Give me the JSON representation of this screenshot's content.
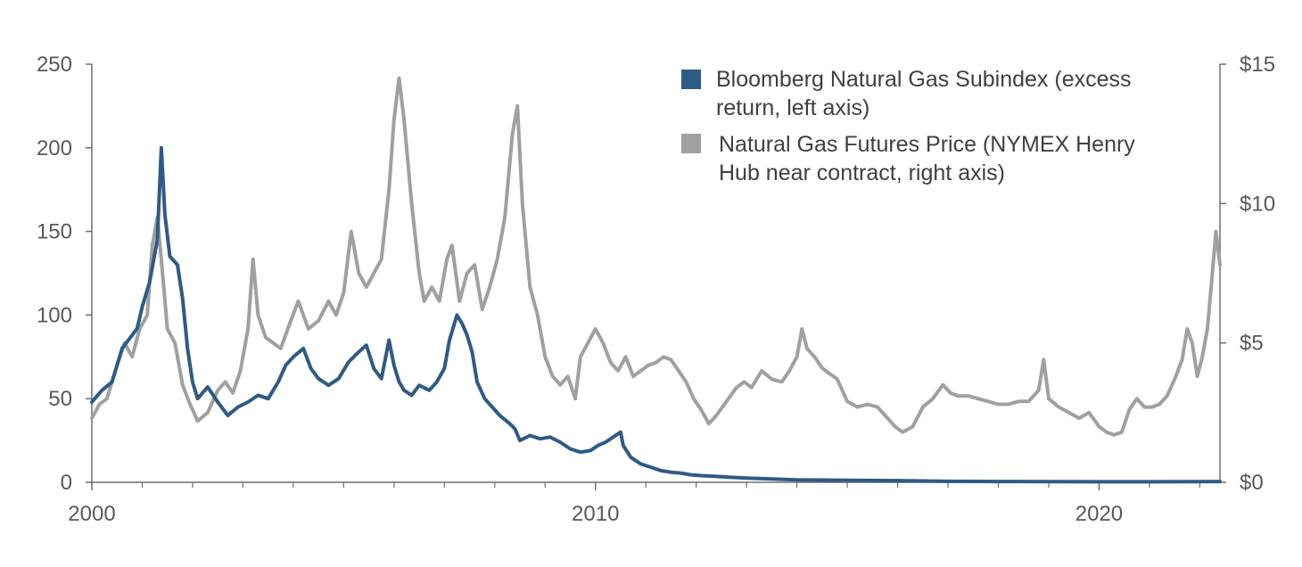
{
  "chart_data": {
    "type": "line",
    "title": "",
    "xlabel": "",
    "ylabel_left": "",
    "ylabel_right": "",
    "x_range": [
      2000,
      2022.4
    ],
    "x_ticks": [
      {
        "value": 2000,
        "label": "2000"
      },
      {
        "value": 2010,
        "label": "2010"
      },
      {
        "value": 2020,
        "label": "2020"
      }
    ],
    "y_left_range": [
      0,
      250
    ],
    "y_left_ticks": [
      {
        "value": 0,
        "label": "0"
      },
      {
        "value": 50,
        "label": "50"
      },
      {
        "value": 100,
        "label": "100"
      },
      {
        "value": 150,
        "label": "150"
      },
      {
        "value": 200,
        "label": "200"
      },
      {
        "value": 250,
        "label": "250"
      }
    ],
    "y_right_range": [
      0,
      15
    ],
    "y_right_ticks": [
      {
        "value": 0,
        "label": "$0"
      },
      {
        "value": 5,
        "label": "$5"
      },
      {
        "value": 10,
        "label": "$10"
      },
      {
        "value": 15,
        "label": "$15"
      }
    ],
    "grid": false,
    "legend_position": "top-right",
    "series": [
      {
        "name_lines": [
          "Bloomberg Natural Gas Subindex (excess",
          "return,  left axis)"
        ],
        "axis": "left",
        "color": "#2E5A87",
        "points": [
          [
            2000.0,
            48
          ],
          [
            2000.2,
            55
          ],
          [
            2000.4,
            60
          ],
          [
            2000.6,
            80
          ],
          [
            2000.8,
            88
          ],
          [
            2000.9,
            92
          ],
          [
            2001.0,
            105
          ],
          [
            2001.15,
            120
          ],
          [
            2001.3,
            145
          ],
          [
            2001.38,
            200
          ],
          [
            2001.45,
            160
          ],
          [
            2001.55,
            135
          ],
          [
            2001.7,
            130
          ],
          [
            2001.8,
            110
          ],
          [
            2001.9,
            80
          ],
          [
            2002.0,
            60
          ],
          [
            2002.1,
            50
          ],
          [
            2002.3,
            57
          ],
          [
            2002.5,
            48
          ],
          [
            2002.7,
            40
          ],
          [
            2002.9,
            45
          ],
          [
            2003.1,
            48
          ],
          [
            2003.3,
            52
          ],
          [
            2003.5,
            50
          ],
          [
            2003.7,
            60
          ],
          [
            2003.85,
            70
          ],
          [
            2004.0,
            75
          ],
          [
            2004.2,
            80
          ],
          [
            2004.35,
            68
          ],
          [
            2004.5,
            62
          ],
          [
            2004.7,
            58
          ],
          [
            2004.9,
            62
          ],
          [
            2005.1,
            72
          ],
          [
            2005.3,
            78
          ],
          [
            2005.45,
            82
          ],
          [
            2005.6,
            68
          ],
          [
            2005.75,
            62
          ],
          [
            2005.9,
            85
          ],
          [
            2006.0,
            70
          ],
          [
            2006.1,
            60
          ],
          [
            2006.2,
            55
          ],
          [
            2006.35,
            52
          ],
          [
            2006.5,
            58
          ],
          [
            2006.7,
            55
          ],
          [
            2006.85,
            60
          ],
          [
            2007.0,
            68
          ],
          [
            2007.1,
            85
          ],
          [
            2007.25,
            100
          ],
          [
            2007.35,
            95
          ],
          [
            2007.45,
            88
          ],
          [
            2007.55,
            78
          ],
          [
            2007.65,
            60
          ],
          [
            2007.8,
            50
          ],
          [
            2007.95,
            45
          ],
          [
            2008.1,
            40
          ],
          [
            2008.3,
            35
          ],
          [
            2008.4,
            32
          ],
          [
            2008.5,
            25
          ],
          [
            2008.7,
            28
          ],
          [
            2008.9,
            26
          ],
          [
            2009.1,
            27
          ],
          [
            2009.3,
            24
          ],
          [
            2009.5,
            20
          ],
          [
            2009.7,
            18
          ],
          [
            2009.9,
            19
          ],
          [
            2010.05,
            22
          ],
          [
            2010.2,
            24
          ],
          [
            2010.35,
            27
          ],
          [
            2010.5,
            30
          ],
          [
            2010.55,
            22
          ],
          [
            2010.7,
            15
          ],
          [
            2010.9,
            11
          ],
          [
            2011.1,
            9
          ],
          [
            2011.3,
            7
          ],
          [
            2011.5,
            6
          ],
          [
            2011.7,
            5.5
          ],
          [
            2011.9,
            4.5
          ],
          [
            2012.1,
            4
          ],
          [
            2012.4,
            3.5
          ],
          [
            2012.7,
            3
          ],
          [
            2013.0,
            2.5
          ],
          [
            2013.5,
            2
          ],
          [
            2014.0,
            1.5
          ],
          [
            2015.0,
            1.2
          ],
          [
            2016.0,
            1
          ],
          [
            2017.0,
            0.6
          ],
          [
            2018.0,
            0.5
          ],
          [
            2019.0,
            0.4
          ],
          [
            2020.0,
            0.3
          ],
          [
            2021.0,
            0.3
          ],
          [
            2022.0,
            0.4
          ],
          [
            2022.4,
            0.5
          ]
        ]
      },
      {
        "name_lines": [
          "Natural Gas Futures Price (NYMEX Henry",
          "Hub near contract, right axis)"
        ],
        "axis": "right",
        "color": "#A0A0A0",
        "points": [
          [
            2000.0,
            2.3
          ],
          [
            2000.15,
            2.8
          ],
          [
            2000.3,
            3.0
          ],
          [
            2000.5,
            4.2
          ],
          [
            2000.65,
            5.0
          ],
          [
            2000.8,
            4.5
          ],
          [
            2000.95,
            5.5
          ],
          [
            2001.1,
            6.0
          ],
          [
            2001.2,
            8.5
          ],
          [
            2001.3,
            9.5
          ],
          [
            2001.38,
            8.0
          ],
          [
            2001.5,
            5.5
          ],
          [
            2001.65,
            5.0
          ],
          [
            2001.8,
            3.5
          ],
          [
            2001.95,
            2.8
          ],
          [
            2002.1,
            2.2
          ],
          [
            2002.3,
            2.5
          ],
          [
            2002.5,
            3.3
          ],
          [
            2002.65,
            3.6
          ],
          [
            2002.8,
            3.2
          ],
          [
            2002.95,
            4.0
          ],
          [
            2003.1,
            5.5
          ],
          [
            2003.2,
            8.0
          ],
          [
            2003.3,
            6.0
          ],
          [
            2003.45,
            5.2
          ],
          [
            2003.6,
            5.0
          ],
          [
            2003.75,
            4.8
          ],
          [
            2003.95,
            5.8
          ],
          [
            2004.1,
            6.5
          ],
          [
            2004.3,
            5.5
          ],
          [
            2004.5,
            5.8
          ],
          [
            2004.7,
            6.5
          ],
          [
            2004.85,
            6.0
          ],
          [
            2005.0,
            6.8
          ],
          [
            2005.15,
            9.0
          ],
          [
            2005.3,
            7.5
          ],
          [
            2005.45,
            7.0
          ],
          [
            2005.6,
            7.5
          ],
          [
            2005.75,
            8.0
          ],
          [
            2005.9,
            10.5
          ],
          [
            2006.0,
            13.0
          ],
          [
            2006.1,
            14.5
          ],
          [
            2006.2,
            13.0
          ],
          [
            2006.35,
            10.0
          ],
          [
            2006.5,
            7.5
          ],
          [
            2006.6,
            6.5
          ],
          [
            2006.75,
            7.0
          ],
          [
            2006.9,
            6.5
          ],
          [
            2007.05,
            8.0
          ],
          [
            2007.15,
            8.5
          ],
          [
            2007.3,
            6.5
          ],
          [
            2007.45,
            7.5
          ],
          [
            2007.6,
            7.8
          ],
          [
            2007.75,
            6.2
          ],
          [
            2007.9,
            7.0
          ],
          [
            2008.05,
            8.0
          ],
          [
            2008.2,
            9.5
          ],
          [
            2008.35,
            12.5
          ],
          [
            2008.45,
            13.5
          ],
          [
            2008.55,
            10.0
          ],
          [
            2008.7,
            7.0
          ],
          [
            2008.85,
            6.0
          ],
          [
            2009.0,
            4.5
          ],
          [
            2009.15,
            3.8
          ],
          [
            2009.3,
            3.5
          ],
          [
            2009.45,
            3.8
          ],
          [
            2009.6,
            3.0
          ],
          [
            2009.7,
            4.5
          ],
          [
            2009.85,
            5.0
          ],
          [
            2010.0,
            5.5
          ],
          [
            2010.15,
            5.0
          ],
          [
            2010.3,
            4.3
          ],
          [
            2010.45,
            4.0
          ],
          [
            2010.6,
            4.5
          ],
          [
            2010.75,
            3.8
          ],
          [
            2010.9,
            4.0
          ],
          [
            2011.05,
            4.2
          ],
          [
            2011.2,
            4.3
          ],
          [
            2011.35,
            4.5
          ],
          [
            2011.5,
            4.4
          ],
          [
            2011.65,
            4.0
          ],
          [
            2011.8,
            3.6
          ],
          [
            2011.95,
            3.0
          ],
          [
            2012.1,
            2.6
          ],
          [
            2012.25,
            2.1
          ],
          [
            2012.4,
            2.4
          ],
          [
            2012.6,
            2.9
          ],
          [
            2012.8,
            3.4
          ],
          [
            2012.95,
            3.6
          ],
          [
            2013.1,
            3.4
          ],
          [
            2013.3,
            4.0
          ],
          [
            2013.5,
            3.7
          ],
          [
            2013.7,
            3.6
          ],
          [
            2013.85,
            4.0
          ],
          [
            2014.0,
            4.5
          ],
          [
            2014.1,
            5.5
          ],
          [
            2014.2,
            4.8
          ],
          [
            2014.35,
            4.5
          ],
          [
            2014.5,
            4.1
          ],
          [
            2014.65,
            3.9
          ],
          [
            2014.8,
            3.7
          ],
          [
            2015.0,
            2.9
          ],
          [
            2015.2,
            2.7
          ],
          [
            2015.4,
            2.8
          ],
          [
            2015.6,
            2.7
          ],
          [
            2015.8,
            2.3
          ],
          [
            2015.95,
            2.0
          ],
          [
            2016.1,
            1.8
          ],
          [
            2016.3,
            2.0
          ],
          [
            2016.5,
            2.7
          ],
          [
            2016.7,
            3.0
          ],
          [
            2016.9,
            3.5
          ],
          [
            2017.05,
            3.2
          ],
          [
            2017.2,
            3.1
          ],
          [
            2017.4,
            3.1
          ],
          [
            2017.6,
            3.0
          ],
          [
            2017.8,
            2.9
          ],
          [
            2018.0,
            2.8
          ],
          [
            2018.2,
            2.8
          ],
          [
            2018.4,
            2.9
          ],
          [
            2018.6,
            2.9
          ],
          [
            2018.8,
            3.3
          ],
          [
            2018.9,
            4.4
          ],
          [
            2019.0,
            3.0
          ],
          [
            2019.2,
            2.7
          ],
          [
            2019.4,
            2.5
          ],
          [
            2019.6,
            2.3
          ],
          [
            2019.8,
            2.5
          ],
          [
            2020.0,
            2.0
          ],
          [
            2020.15,
            1.8
          ],
          [
            2020.3,
            1.7
          ],
          [
            2020.45,
            1.8
          ],
          [
            2020.6,
            2.6
          ],
          [
            2020.75,
            3.0
          ],
          [
            2020.9,
            2.7
          ],
          [
            2021.05,
            2.7
          ],
          [
            2021.2,
            2.8
          ],
          [
            2021.35,
            3.1
          ],
          [
            2021.5,
            3.7
          ],
          [
            2021.65,
            4.4
          ],
          [
            2021.75,
            5.5
          ],
          [
            2021.85,
            5.0
          ],
          [
            2021.95,
            3.8
          ],
          [
            2022.05,
            4.5
          ],
          [
            2022.15,
            5.5
          ],
          [
            2022.25,
            7.5
          ],
          [
            2022.32,
            9.0
          ],
          [
            2022.4,
            7.8
          ]
        ]
      }
    ]
  }
}
